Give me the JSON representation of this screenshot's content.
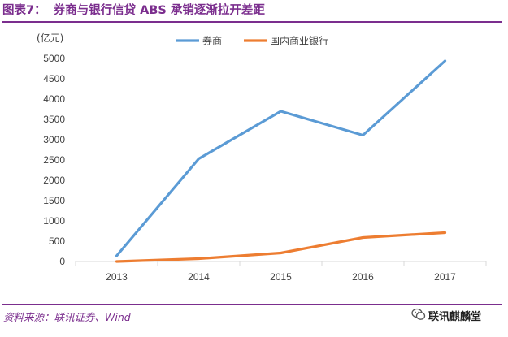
{
  "header": {
    "label": "图表7：",
    "title": "券商与银行信贷 ABS 承销逐渐拉开差距"
  },
  "footer": {
    "source": "资料来源：联讯证券、Wind",
    "watermark": "联讯麒麟堂",
    "watermark_icon": "wechat-icon"
  },
  "colors": {
    "accent": "#7b2e8e",
    "series_brokers": "#5b9bd5",
    "series_banks": "#ed7d31",
    "axis": "#d9d9d9"
  },
  "chart_data": {
    "type": "line",
    "unit_label": "(亿元)",
    "x": [
      "2013",
      "2014",
      "2015",
      "2016",
      "2017"
    ],
    "series": [
      {
        "name": "券商",
        "values": [
          140,
          2530,
          3700,
          3110,
          4940
        ]
      },
      {
        "name": "国内商业银行",
        "values": [
          0,
          70,
          210,
          590,
          710
        ]
      }
    ],
    "ylim": [
      0,
      5000
    ],
    "yticks": [
      0,
      500,
      1000,
      1500,
      2000,
      2500,
      3000,
      3500,
      4000,
      4500,
      5000
    ],
    "grid": false,
    "legend_position": "top-center"
  }
}
